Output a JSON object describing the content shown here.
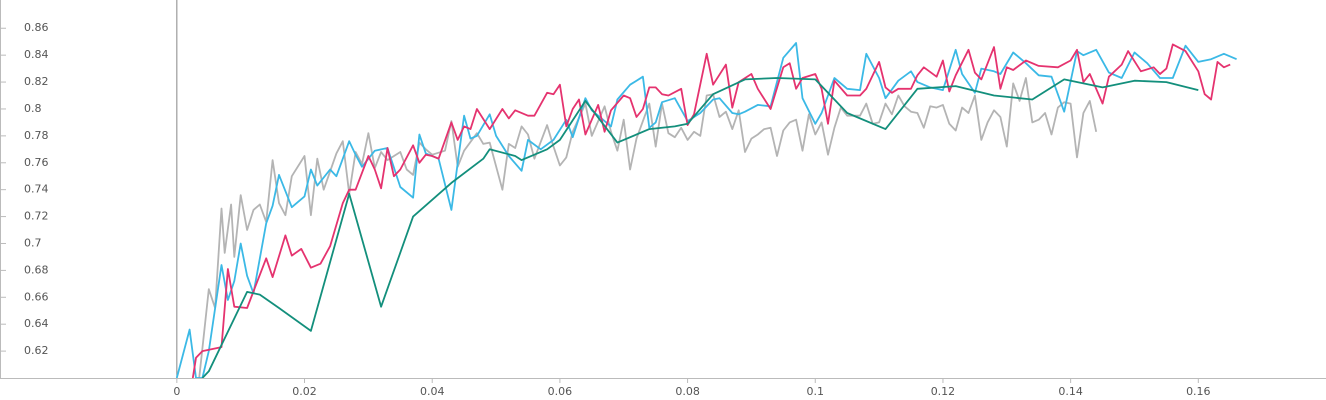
{
  "chart_data": {
    "type": "line",
    "xlim": [
      -0.0277,
      0.18
    ],
    "ylim": [
      0.6,
      0.881
    ],
    "xticks": [
      0,
      0.02,
      0.04,
      0.06,
      0.08,
      0.1,
      0.12,
      0.14,
      0.16
    ],
    "yticks": [
      0.62,
      0.64,
      0.66,
      0.68,
      0.7,
      0.72,
      0.74,
      0.76,
      0.78,
      0.8,
      0.82,
      0.84,
      0.86
    ],
    "series": [
      {
        "color": "#b4b4b4",
        "x": [
          0.0035,
          0.005,
          0.006,
          0.007,
          0.0075,
          0.0085,
          0.009,
          0.01,
          0.011,
          0.012,
          0.013,
          0.014,
          0.015,
          0.016,
          0.017,
          0.018,
          0.02,
          0.021,
          0.022,
          0.023,
          0.025,
          0.026,
          0.027,
          0.028,
          0.029,
          0.03,
          0.031,
          0.032,
          0.033,
          0.035,
          0.036,
          0.037,
          0.038,
          0.039,
          0.04,
          0.042,
          0.043,
          0.044,
          0.045,
          0.047,
          0.048,
          0.049,
          0.051,
          0.052,
          0.053,
          0.054,
          0.055,
          0.056,
          0.058,
          0.059,
          0.06,
          0.061,
          0.062,
          0.064,
          0.065,
          0.066,
          0.067,
          0.068,
          0.069,
          0.07,
          0.071,
          0.072,
          0.074,
          0.075,
          0.076,
          0.077,
          0.078,
          0.079,
          0.08,
          0.081,
          0.082,
          0.083,
          0.084,
          0.085,
          0.086,
          0.087,
          0.088,
          0.089,
          0.09,
          0.091,
          0.092,
          0.093,
          0.094,
          0.095,
          0.096,
          0.097,
          0.098,
          0.099,
          0.1,
          0.101,
          0.102,
          0.103,
          0.104,
          0.105,
          0.107,
          0.108,
          0.109,
          0.11,
          0.111,
          0.112,
          0.113,
          0.114,
          0.115,
          0.116,
          0.117,
          0.118,
          0.119,
          0.12,
          0.121,
          0.122,
          0.123,
          0.124,
          0.125,
          0.126,
          0.127,
          0.128,
          0.129,
          0.13,
          0.131,
          0.132,
          0.133,
          0.134,
          0.135,
          0.136,
          0.137,
          0.138,
          0.139,
          0.14,
          0.141,
          0.142,
          0.143,
          0.144
        ],
        "values": [
          0.6,
          0.666,
          0.652,
          0.726,
          0.693,
          0.729,
          0.69,
          0.736,
          0.71,
          0.725,
          0.729,
          0.716,
          0.762,
          0.73,
          0.721,
          0.75,
          0.765,
          0.721,
          0.763,
          0.74,
          0.767,
          0.776,
          0.737,
          0.768,
          0.759,
          0.782,
          0.756,
          0.768,
          0.762,
          0.768,
          0.755,
          0.751,
          0.775,
          0.77,
          0.766,
          0.769,
          0.791,
          0.757,
          0.769,
          0.782,
          0.774,
          0.775,
          0.74,
          0.774,
          0.771,
          0.787,
          0.781,
          0.763,
          0.788,
          0.772,
          0.758,
          0.764,
          0.783,
          0.804,
          0.78,
          0.791,
          0.802,
          0.783,
          0.769,
          0.792,
          0.755,
          0.778,
          0.804,
          0.772,
          0.804,
          0.782,
          0.779,
          0.786,
          0.777,
          0.783,
          0.78,
          0.81,
          0.811,
          0.794,
          0.798,
          0.785,
          0.799,
          0.768,
          0.778,
          0.781,
          0.785,
          0.786,
          0.765,
          0.784,
          0.79,
          0.792,
          0.769,
          0.796,
          0.781,
          0.79,
          0.766,
          0.786,
          0.801,
          0.795,
          0.795,
          0.804,
          0.789,
          0.79,
          0.804,
          0.796,
          0.81,
          0.802,
          0.798,
          0.797,
          0.786,
          0.802,
          0.801,
          0.803,
          0.789,
          0.784,
          0.801,
          0.797,
          0.81,
          0.777,
          0.79,
          0.799,
          0.794,
          0.772,
          0.819,
          0.806,
          0.823,
          0.79,
          0.792,
          0.797,
          0.781,
          0.801,
          0.805,
          0.804,
          0.764,
          0.797,
          0.806,
          0.783
        ]
      },
      {
        "color": "#3bb9e6",
        "x": [
          0,
          0.002,
          0.003,
          0.004,
          0.005,
          0.007,
          0.008,
          0.009,
          0.01,
          0.011,
          0.012,
          0.014,
          0.015,
          0.016,
          0.018,
          0.02,
          0.021,
          0.022,
          0.024,
          0.025,
          0.027,
          0.028,
          0.029,
          0.031,
          0.033,
          0.035,
          0.037,
          0.038,
          0.039,
          0.041,
          0.043,
          0.045,
          0.046,
          0.047,
          0.049,
          0.05,
          0.052,
          0.054,
          0.055,
          0.057,
          0.059,
          0.061,
          0.062,
          0.064,
          0.065,
          0.067,
          0.068,
          0.069,
          0.071,
          0.073,
          0.074,
          0.075,
          0.076,
          0.078,
          0.08,
          0.082,
          0.084,
          0.085,
          0.087,
          0.088,
          0.089,
          0.091,
          0.093,
          0.095,
          0.097,
          0.098,
          0.1,
          0.101,
          0.103,
          0.105,
          0.107,
          0.108,
          0.11,
          0.111,
          0.113,
          0.115,
          0.116,
          0.118,
          0.12,
          0.122,
          0.123,
          0.125,
          0.126,
          0.128,
          0.129,
          0.131,
          0.133,
          0.135,
          0.137,
          0.139,
          0.141,
          0.142,
          0.144,
          0.146,
          0.148,
          0.15,
          0.152,
          0.154,
          0.156,
          0.158,
          0.16,
          0.162,
          0.164,
          0.166
        ],
        "values": [
          0.6,
          0.636,
          0.6,
          0.6,
          0.62,
          0.684,
          0.658,
          0.672,
          0.7,
          0.676,
          0.663,
          0.715,
          0.728,
          0.751,
          0.727,
          0.735,
          0.755,
          0.743,
          0.755,
          0.75,
          0.776,
          0.766,
          0.757,
          0.769,
          0.771,
          0.742,
          0.734,
          0.781,
          0.767,
          0.763,
          0.725,
          0.795,
          0.778,
          0.78,
          0.796,
          0.78,
          0.765,
          0.754,
          0.777,
          0.77,
          0.777,
          0.792,
          0.779,
          0.808,
          0.799,
          0.791,
          0.787,
          0.807,
          0.818,
          0.824,
          0.786,
          0.79,
          0.805,
          0.808,
          0.791,
          0.797,
          0.807,
          0.808,
          0.797,
          0.796,
          0.798,
          0.803,
          0.802,
          0.838,
          0.849,
          0.808,
          0.789,
          0.797,
          0.823,
          0.815,
          0.814,
          0.841,
          0.823,
          0.808,
          0.821,
          0.828,
          0.82,
          0.816,
          0.814,
          0.844,
          0.826,
          0.812,
          0.83,
          0.828,
          0.826,
          0.842,
          0.834,
          0.825,
          0.824,
          0.798,
          0.843,
          0.84,
          0.844,
          0.827,
          0.823,
          0.842,
          0.834,
          0.823,
          0.823,
          0.847,
          0.835,
          0.837,
          0.841,
          0.837
        ]
      },
      {
        "color": "#e5336f",
        "x": [
          0.0025,
          0.003,
          0.004,
          0.007,
          0.008,
          0.009,
          0.011,
          0.014,
          0.015,
          0.017,
          0.018,
          0.0195,
          0.021,
          0.0225,
          0.024,
          0.026,
          0.027,
          0.028,
          0.03,
          0.031,
          0.032,
          0.033,
          0.034,
          0.035,
          0.037,
          0.038,
          0.039,
          0.04,
          0.041,
          0.043,
          0.044,
          0.045,
          0.046,
          0.047,
          0.049,
          0.051,
          0.052,
          0.053,
          0.055,
          0.056,
          0.058,
          0.059,
          0.06,
          0.061,
          0.062,
          0.063,
          0.064,
          0.066,
          0.067,
          0.068,
          0.07,
          0.071,
          0.072,
          0.073,
          0.074,
          0.075,
          0.076,
          0.077,
          0.079,
          0.08,
          0.081,
          0.083,
          0.084,
          0.086,
          0.087,
          0.088,
          0.09,
          0.091,
          0.093,
          0.095,
          0.096,
          0.097,
          0.098,
          0.1,
          0.101,
          0.102,
          0.103,
          0.105,
          0.107,
          0.108,
          0.11,
          0.111,
          0.112,
          0.113,
          0.115,
          0.116,
          0.117,
          0.119,
          0.12,
          0.121,
          0.122,
          0.124,
          0.125,
          0.126,
          0.128,
          0.129,
          0.13,
          0.131,
          0.133,
          0.135,
          0.138,
          0.14,
          0.141,
          0.142,
          0.143,
          0.145,
          0.146,
          0.148,
          0.149,
          0.151,
          0.153,
          0.154,
          0.155,
          0.156,
          0.158,
          0.16,
          0.161,
          0.162,
          0.163,
          0.164,
          0.165
        ],
        "values": [
          0.6,
          0.615,
          0.62,
          0.623,
          0.681,
          0.653,
          0.652,
          0.689,
          0.675,
          0.706,
          0.691,
          0.696,
          0.682,
          0.685,
          0.698,
          0.73,
          0.74,
          0.74,
          0.765,
          0.755,
          0.741,
          0.771,
          0.75,
          0.755,
          0.773,
          0.76,
          0.766,
          0.765,
          0.763,
          0.79,
          0.777,
          0.787,
          0.785,
          0.8,
          0.785,
          0.8,
          0.793,
          0.799,
          0.795,
          0.795,
          0.812,
          0.811,
          0.818,
          0.787,
          0.8,
          0.807,
          0.781,
          0.803,
          0.783,
          0.799,
          0.81,
          0.808,
          0.794,
          0.8,
          0.816,
          0.816,
          0.811,
          0.81,
          0.815,
          0.788,
          0.796,
          0.841,
          0.818,
          0.833,
          0.801,
          0.82,
          0.826,
          0.815,
          0.8,
          0.831,
          0.834,
          0.815,
          0.823,
          0.826,
          0.815,
          0.789,
          0.821,
          0.81,
          0.81,
          0.815,
          0.835,
          0.816,
          0.812,
          0.815,
          0.815,
          0.825,
          0.831,
          0.824,
          0.836,
          0.813,
          0.825,
          0.844,
          0.827,
          0.822,
          0.846,
          0.815,
          0.831,
          0.829,
          0.836,
          0.832,
          0.831,
          0.836,
          0.844,
          0.82,
          0.826,
          0.804,
          0.824,
          0.833,
          0.843,
          0.828,
          0.831,
          0.826,
          0.83,
          0.848,
          0.843,
          0.828,
          0.811,
          0.807,
          0.835,
          0.831,
          0.833
        ]
      },
      {
        "color": "#138f7c",
        "x": [
          0.004,
          0.005,
          0.011,
          0.013,
          0.016,
          0.021,
          0.027,
          0.032,
          0.037,
          0.043,
          0.048,
          0.049,
          0.053,
          0.054,
          0.058,
          0.06,
          0.064,
          0.069,
          0.074,
          0.078,
          0.08,
          0.084,
          0.089,
          0.094,
          0.1,
          0.105,
          0.111,
          0.116,
          0.122,
          0.128,
          0.134,
          0.139,
          0.145,
          0.15,
          0.155,
          0.16
        ],
        "values": [
          0.6,
          0.605,
          0.664,
          0.662,
          0.652,
          0.635,
          0.737,
          0.653,
          0.72,
          0.745,
          0.763,
          0.77,
          0.765,
          0.762,
          0.77,
          0.777,
          0.806,
          0.775,
          0.785,
          0.787,
          0.789,
          0.811,
          0.822,
          0.823,
          0.822,
          0.797,
          0.785,
          0.815,
          0.817,
          0.81,
          0.807,
          0.822,
          0.816,
          0.821,
          0.82,
          0.814
        ]
      }
    ]
  }
}
